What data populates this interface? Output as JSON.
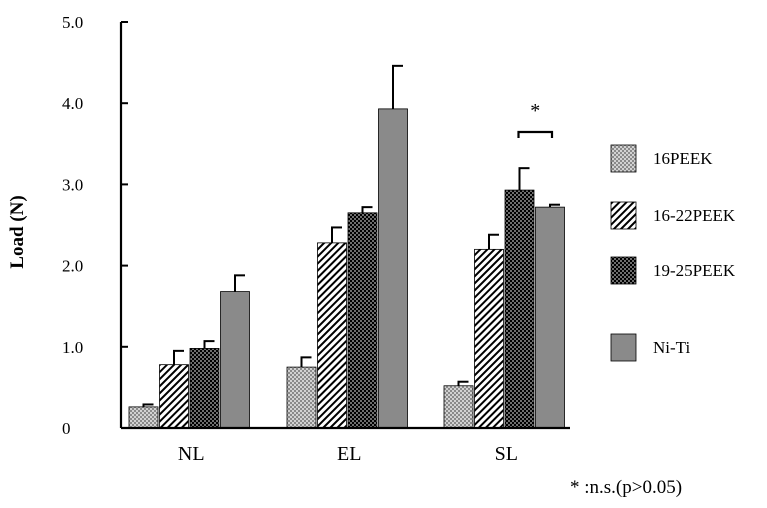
{
  "chart_data": {
    "type": "bar",
    "title": "",
    "xlabel": "",
    "ylabel": "Load (N)",
    "ylim": [
      0,
      5
    ],
    "yticks": [
      0,
      1,
      2,
      3,
      4,
      5
    ],
    "ytick_labels": [
      "0",
      "1.0",
      "2.0",
      "3.0",
      "4.0",
      "5.0"
    ],
    "categories": [
      "NL",
      "EL",
      "SL"
    ],
    "series": [
      {
        "name": "16PEEK",
        "pattern": "dots",
        "values": [
          0.26,
          0.75,
          0.52
        ],
        "errors": [
          0.03,
          0.12,
          0.05
        ]
      },
      {
        "name": "16-22PEEK",
        "pattern": "diagonal",
        "values": [
          0.78,
          2.28,
          2.2
        ],
        "errors": [
          0.17,
          0.19,
          0.18
        ]
      },
      {
        "name": "19-25PEEK",
        "pattern": "checker",
        "values": [
          0.98,
          2.65,
          2.93
        ],
        "errors": [
          0.09,
          0.07,
          0.27
        ]
      },
      {
        "name": "Ni-Ti",
        "pattern": "solid",
        "values": [
          1.68,
          3.93,
          2.72
        ],
        "errors": [
          0.2,
          0.53,
          0.03
        ]
      }
    ],
    "annotation": {
      "text": "*",
      "between_series": [
        "19-25PEEK",
        "Ni-Ti"
      ],
      "category": "SL"
    },
    "footnote": "* :n.s.(p>0.05)",
    "colors": {
      "solid": "#8a8a8a",
      "ink": "#000000",
      "dots": "#b8b8b8",
      "dark": "#1a1a1a"
    }
  }
}
